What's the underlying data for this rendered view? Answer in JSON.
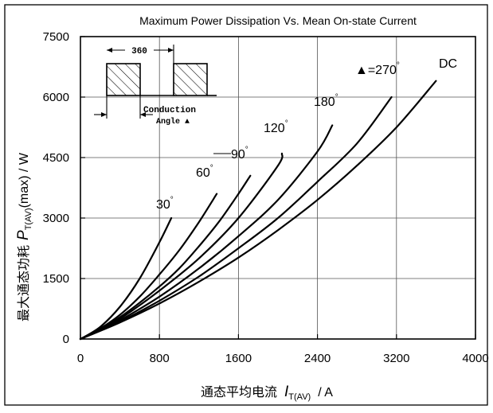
{
  "chart_data": {
    "type": "line",
    "title": "Maximum Power Dissipation Vs. Mean On-state Current",
    "ylabel_prefix": "最大通态功耗",
    "ylabel_symbol": "P",
    "ylabel_sub": "T(AV)",
    "ylabel_suffix": "(max) / W",
    "xlabel_prefix": "通态平均电流",
    "xlabel_symbol": "I",
    "xlabel_sub": "T(AV)",
    "xlabel_suffix": "/   A",
    "xlim": [
      0,
      4000
    ],
    "ylim": [
      0,
      7500
    ],
    "xticks": [
      0,
      800,
      1600,
      2400,
      3200,
      4000
    ],
    "yticks": [
      0,
      1500,
      3000,
      4500,
      6000,
      7500
    ],
    "grid": true,
    "series": [
      {
        "name": "30°",
        "x": [
          0,
          200,
          400,
          600,
          800,
          920
        ],
        "y": [
          0,
          300,
          800,
          1500,
          2400,
          3000
        ]
      },
      {
        "name": "60°",
        "x": [
          0,
          200,
          400,
          600,
          800,
          1000,
          1200,
          1380
        ],
        "y": [
          0,
          260,
          600,
          1050,
          1600,
          2200,
          2900,
          3600
        ]
      },
      {
        "name": "90°",
        "x": [
          0,
          200,
          400,
          600,
          800,
          1000,
          1200,
          1400,
          1600,
          1720
        ],
        "y": [
          0,
          240,
          540,
          900,
          1300,
          1750,
          2300,
          2900,
          3600,
          4050
        ]
      },
      {
        "name": "120°",
        "x": [
          0,
          200,
          400,
          800,
          1200,
          1600,
          2000,
          2040
        ],
        "y": [
          0,
          230,
          500,
          1200,
          2000,
          3000,
          4300,
          4600
        ]
      },
      {
        "name": "180°",
        "x": [
          0,
          200,
          400,
          800,
          1200,
          1600,
          2000,
          2400,
          2550
        ],
        "y": [
          0,
          210,
          460,
          1050,
          1750,
          2550,
          3450,
          4650,
          5300
        ]
      },
      {
        "name": "270°",
        "x": [
          0,
          400,
          800,
          1200,
          1600,
          2000,
          2400,
          2800,
          3150
        ],
        "y": [
          0,
          430,
          950,
          1550,
          2250,
          3000,
          3900,
          4850,
          6000
        ]
      },
      {
        "name": "DC",
        "x": [
          0,
          400,
          800,
          1200,
          1600,
          2000,
          2400,
          2800,
          3200,
          3600
        ],
        "y": [
          0,
          410,
          880,
          1420,
          2020,
          2700,
          3450,
          4300,
          5250,
          6400
        ]
      }
    ],
    "annotations": {
      "a30": "30",
      "a60": "60",
      "a90": "90",
      "a120": "120",
      "a180": "180",
      "a270_prefix": "▲=270",
      "dc": "DC",
      "deg": "°"
    },
    "inset": {
      "period_label": "360",
      "conduction_line1": "Conduction",
      "conduction_line2": "Angle ▲"
    }
  }
}
